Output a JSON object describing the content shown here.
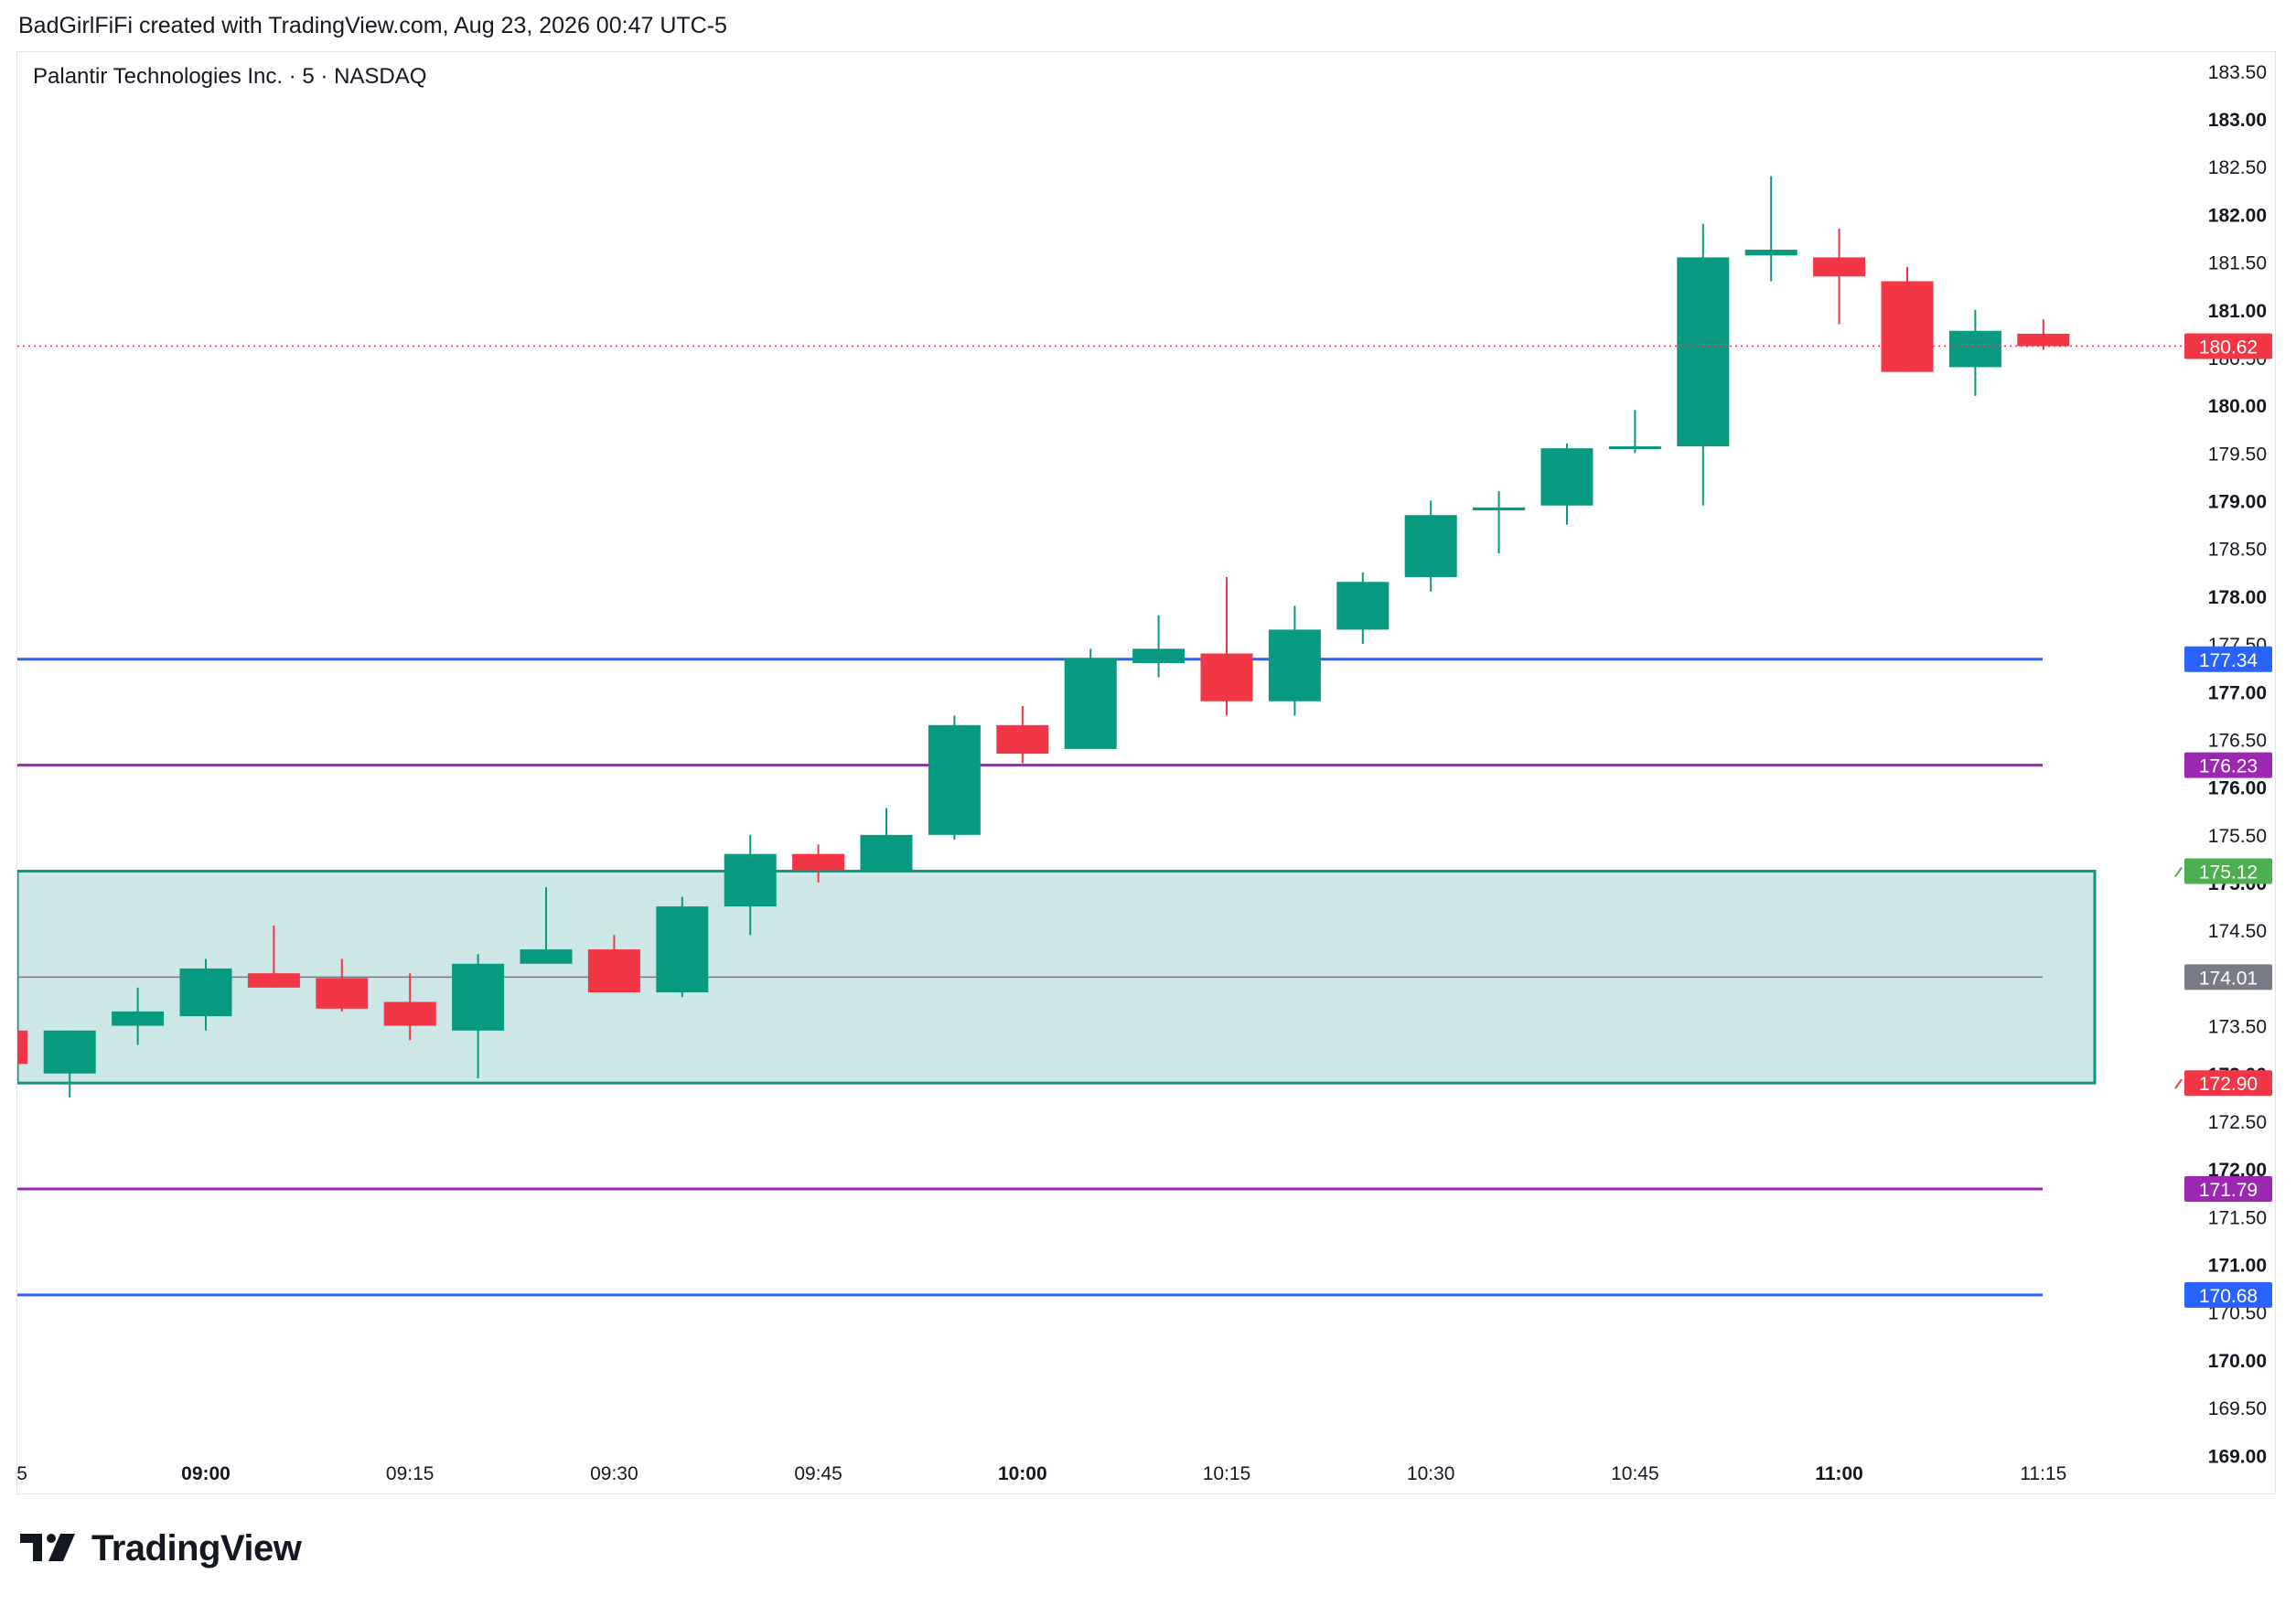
{
  "header": {
    "credit": "BadGirlFiFi created with TradingView.com, Aug 23, 2026 00:47 UTC-5"
  },
  "symbol": {
    "title": "Palantir Technologies Inc. · 5 · NASDAQ"
  },
  "brand": {
    "name": "TradingView",
    "logo_icon": "tradingview-logo-icon"
  },
  "colors": {
    "up": "#089981",
    "down": "#f23645",
    "blue_line": "#2962ff",
    "purple_line": "#9c27b0",
    "zone_fill": "#cde7e6",
    "zone_border": "#089981",
    "mid_line": "#787b86",
    "label_green": "#4caf50",
    "label_red": "#f23645",
    "label_gray": "#787b86"
  },
  "chart_data": {
    "type": "candlestick",
    "title": "Palantir Technologies Inc. · 5 · NASDAQ",
    "interval_minutes": 5,
    "ylim": [
      168.6,
      183.7
    ],
    "grid": false,
    "y_ticks": [
      {
        "v": 183.5,
        "t": "183.50",
        "bold": false
      },
      {
        "v": 183,
        "t": "183.00",
        "bold": true
      },
      {
        "v": 182.5,
        "t": "182.50",
        "bold": false
      },
      {
        "v": 182,
        "t": "182.00",
        "bold": true
      },
      {
        "v": 181.5,
        "t": "181.50",
        "bold": false
      },
      {
        "v": 181,
        "t": "181.00",
        "bold": true
      },
      {
        "v": 180.5,
        "t": "180.50",
        "bold": false
      },
      {
        "v": 180,
        "t": "180.00",
        "bold": true
      },
      {
        "v": 179.5,
        "t": "179.50",
        "bold": false
      },
      {
        "v": 179,
        "t": "179.00",
        "bold": true
      },
      {
        "v": 178.5,
        "t": "178.50",
        "bold": false
      },
      {
        "v": 178,
        "t": "178.00",
        "bold": true
      },
      {
        "v": 177.5,
        "t": "177.50",
        "bold": false
      },
      {
        "v": 177,
        "t": "177.00",
        "bold": true
      },
      {
        "v": 176.5,
        "t": "176.50",
        "bold": false
      },
      {
        "v": 176,
        "t": "176.00",
        "bold": true
      },
      {
        "v": 175.5,
        "t": "175.50",
        "bold": false
      },
      {
        "v": 175,
        "t": "175.00",
        "bold": true
      },
      {
        "v": 174.5,
        "t": "174.50",
        "bold": false
      },
      {
        "v": 174,
        "t": "174.00",
        "bold": true
      },
      {
        "v": 173.5,
        "t": "173.50",
        "bold": false
      },
      {
        "v": 173,
        "t": "173.00",
        "bold": true
      },
      {
        "v": 172.5,
        "t": "172.50",
        "bold": false
      },
      {
        "v": 172,
        "t": "172.00",
        "bold": true
      },
      {
        "v": 171.5,
        "t": "171.50",
        "bold": false
      },
      {
        "v": 171,
        "t": "171.00",
        "bold": true
      },
      {
        "v": 170.5,
        "t": "170.50",
        "bold": false
      },
      {
        "v": 170,
        "t": "170.00",
        "bold": true
      },
      {
        "v": 169.5,
        "t": "169.50",
        "bold": false
      },
      {
        "v": 169,
        "t": "169.00",
        "bold": true
      }
    ],
    "x_ticks": [
      {
        "i": -2.7,
        "t": "5",
        "bold": false
      },
      {
        "i": 0,
        "t": "09:00",
        "bold": true
      },
      {
        "i": 3,
        "t": "09:15",
        "bold": false
      },
      {
        "i": 6,
        "t": "09:30",
        "bold": false
      },
      {
        "i": 9,
        "t": "09:45",
        "bold": false
      },
      {
        "i": 12,
        "t": "10:00",
        "bold": true
      },
      {
        "i": 15,
        "t": "10:15",
        "bold": false
      },
      {
        "i": 18,
        "t": "10:30",
        "bold": false
      },
      {
        "i": 21,
        "t": "10:45",
        "bold": false
      },
      {
        "i": 24,
        "t": "11:00",
        "bold": true
      },
      {
        "i": 27,
        "t": "11:15",
        "bold": false
      }
    ],
    "candles": [
      {
        "t": "08:45",
        "o": 173.45,
        "h": 173.45,
        "l": 173.1,
        "c": 173.1
      },
      {
        "t": "08:50",
        "o": 173.0,
        "h": 173.45,
        "l": 172.75,
        "c": 173.45
      },
      {
        "t": "08:55",
        "o": 173.5,
        "h": 173.9,
        "l": 173.3,
        "c": 173.65
      },
      {
        "t": "09:00",
        "o": 173.6,
        "h": 174.2,
        "l": 173.45,
        "c": 174.1
      },
      {
        "t": "09:05",
        "o": 174.05,
        "h": 174.55,
        "l": 173.9,
        "c": 173.9
      },
      {
        "t": "09:10",
        "o": 174.0,
        "h": 174.2,
        "l": 173.65,
        "c": 173.68
      },
      {
        "t": "09:15",
        "o": 173.75,
        "h": 174.05,
        "l": 173.35,
        "c": 173.5
      },
      {
        "t": "09:20",
        "o": 173.45,
        "h": 174.25,
        "l": 172.95,
        "c": 174.15
      },
      {
        "t": "09:25",
        "o": 174.15,
        "h": 174.95,
        "l": 174.15,
        "c": 174.3
      },
      {
        "t": "09:30",
        "o": 174.3,
        "h": 174.45,
        "l": 173.85,
        "c": 173.85
      },
      {
        "t": "09:35",
        "o": 173.85,
        "h": 174.85,
        "l": 173.8,
        "c": 174.75
      },
      {
        "t": "09:40",
        "o": 174.75,
        "h": 175.5,
        "l": 174.45,
        "c": 175.3
      },
      {
        "t": "09:45",
        "o": 175.3,
        "h": 175.4,
        "l": 175.0,
        "c": 175.13
      },
      {
        "t": "09:50",
        "o": 175.12,
        "h": 175.78,
        "l": 175.12,
        "c": 175.5
      },
      {
        "t": "09:55",
        "o": 175.5,
        "h": 176.75,
        "l": 175.45,
        "c": 176.65
      },
      {
        "t": "10:00",
        "o": 176.65,
        "h": 176.85,
        "l": 176.25,
        "c": 176.35
      },
      {
        "t": "10:05",
        "o": 176.4,
        "h": 177.45,
        "l": 176.4,
        "c": 177.35
      },
      {
        "t": "10:10",
        "o": 177.3,
        "h": 177.8,
        "l": 177.15,
        "c": 177.45
      },
      {
        "t": "10:15",
        "o": 177.4,
        "h": 178.2,
        "l": 176.75,
        "c": 176.9
      },
      {
        "t": "10:20",
        "o": 176.9,
        "h": 177.9,
        "l": 176.75,
        "c": 177.65
      },
      {
        "t": "10:25",
        "o": 177.65,
        "h": 178.25,
        "l": 177.5,
        "c": 178.15
      },
      {
        "t": "10:30",
        "o": 178.2,
        "h": 179.0,
        "l": 178.05,
        "c": 178.85
      },
      {
        "t": "10:35",
        "o": 178.9,
        "h": 179.1,
        "l": 178.45,
        "c": 178.93
      },
      {
        "t": "10:40",
        "o": 178.95,
        "h": 179.6,
        "l": 178.75,
        "c": 179.55
      },
      {
        "t": "10:45",
        "o": 179.55,
        "h": 179.95,
        "l": 179.5,
        "c": 179.57
      },
      {
        "t": "10:50",
        "o": 179.57,
        "h": 181.9,
        "l": 178.95,
        "c": 181.55
      },
      {
        "t": "10:55",
        "o": 181.57,
        "h": 182.4,
        "l": 181.3,
        "c": 181.63
      },
      {
        "t": "11:00",
        "o": 181.55,
        "h": 181.85,
        "l": 180.85,
        "c": 181.35
      },
      {
        "t": "11:05",
        "o": 181.3,
        "h": 181.45,
        "l": 180.35,
        "c": 180.35
      },
      {
        "t": "11:10",
        "o": 180.4,
        "h": 181.0,
        "l": 180.1,
        "c": 180.78
      },
      {
        "t": "11:15",
        "o": 180.75,
        "h": 180.9,
        "l": 180.58,
        "c": 180.62
      }
    ],
    "levels": [
      {
        "name": "blue-level-upper",
        "price": 177.34,
        "label": "177.34",
        "color": "#2962ff"
      },
      {
        "name": "purple-level-upper",
        "price": 176.23,
        "label": "176.23",
        "color": "#9c27b0"
      },
      {
        "name": "purple-level-lower",
        "price": 171.79,
        "label": "171.79",
        "color": "#9c27b0"
      },
      {
        "name": "blue-level-lower",
        "price": 170.68,
        "label": "170.68",
        "color": "#2962ff"
      }
    ],
    "zone": {
      "top": 175.12,
      "bottom": 172.9,
      "mid": 174.01,
      "top_label": "175.12",
      "bottom_label": "172.90",
      "mid_label": "174.01"
    },
    "last_price": {
      "value": 180.62,
      "label": "180.62"
    }
  }
}
